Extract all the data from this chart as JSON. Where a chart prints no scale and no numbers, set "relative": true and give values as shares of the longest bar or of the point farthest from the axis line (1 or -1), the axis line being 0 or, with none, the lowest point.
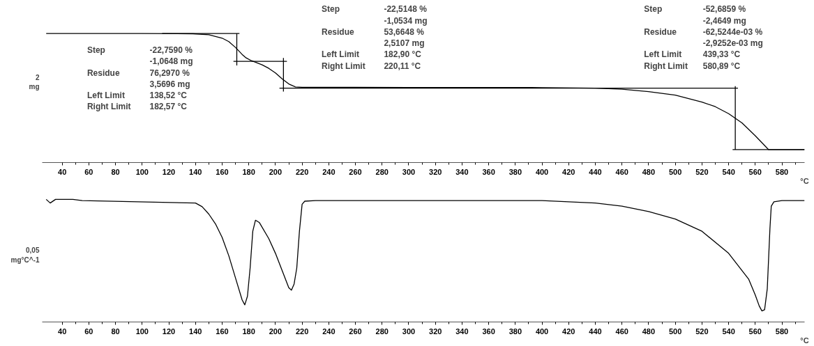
{
  "chart_data": [
    {
      "type": "line",
      "relative": true,
      "ylabel": "2\nmg",
      "xlabel": "°C",
      "xlim": [
        25,
        597
      ],
      "xticks": [
        40,
        {
          "value": 50,
          "label": null
        },
        60,
        {
          "value": 70,
          "label": null
        },
        80,
        {
          "value": 90,
          "label": null
        },
        100,
        {
          "value": 110,
          "label": null
        },
        120,
        {
          "value": 130,
          "label": null
        },
        140,
        {
          "value": 150,
          "label": null
        },
        160,
        {
          "value": 170,
          "label": null
        },
        180,
        {
          "value": 190,
          "label": null
        },
        200,
        {
          "value": 210,
          "label": null
        },
        220,
        {
          "value": 230,
          "label": null
        },
        240,
        {
          "value": 250,
          "label": null
        },
        260,
        {
          "value": 270,
          "label": null
        },
        280,
        {
          "value": 290,
          "label": null
        },
        300,
        {
          "value": 310,
          "label": null
        },
        320,
        {
          "value": 330,
          "label": null
        },
        340,
        {
          "value": 350,
          "label": null
        },
        360,
        {
          "value": 370,
          "label": null
        },
        380,
        {
          "value": 390,
          "label": null
        },
        400,
        {
          "value": 410,
          "label": null
        },
        420,
        {
          "value": 430,
          "label": null
        },
        440,
        {
          "value": 450,
          "label": null
        },
        460,
        {
          "value": 470,
          "label": null
        },
        480,
        {
          "value": 490,
          "label": null
        },
        500,
        {
          "value": 510,
          "label": null
        },
        520,
        {
          "value": 530,
          "label": null
        },
        540,
        {
          "value": 550,
          "label": null
        },
        560,
        {
          "value": 570,
          "label": null
        },
        580,
        {
          "value": 590,
          "label": null
        }
      ],
      "tick_labels": "x",
      "grid": false,
      "marker": "none",
      "line_style": "solid",
      "series": [
        {
          "color": "#000000",
          "x": [
            28,
            100,
            138,
            150,
            160,
            165,
            170,
            175,
            178,
            182,
            190,
            195,
            200,
            205,
            210,
            215,
            220,
            300,
            400,
            440,
            460,
            480,
            500,
            520,
            530,
            540,
            550,
            560,
            565,
            570,
            597
          ],
          "values": [
            1.0,
            1.0,
            0.998,
            0.991,
            0.964,
            0.937,
            0.892,
            0.838,
            0.811,
            0.789,
            0.757,
            0.73,
            0.694,
            0.649,
            0.609,
            0.586,
            0.583,
            0.582,
            0.581,
            0.577,
            0.568,
            0.55,
            0.523,
            0.469,
            0.433,
            0.379,
            0.307,
            0.208,
            0.154,
            0.1,
            0.1
          ]
        },
        {
          "color": "#000000",
          "x": [
            115,
            173
          ],
          "values": [
            1.0,
            1.0
          ]
        },
        {
          "color": "#000000",
          "x": [
            171,
            171
          ],
          "values": [
            1.0,
            0.753
          ]
        },
        {
          "color": "#000000",
          "x": [
            168.5,
            208.6
          ],
          "values": [
            0.784,
            0.784
          ]
        },
        {
          "color": "#000000",
          "x": [
            206,
            206
          ],
          "values": [
            0.811,
            0.55
          ]
        },
        {
          "color": "#000000",
          "x": [
            203,
            547
          ],
          "values": [
            0.577,
            0.577
          ]
        },
        {
          "color": "#000000",
          "x": [
            545,
            545
          ],
          "values": [
            0.592,
            0.1
          ]
        },
        {
          "color": "#000000",
          "x": [
            543,
            597
          ],
          "values": [
            0.1,
            0.1
          ]
        }
      ],
      "annotations": [
        "Step",
        "-22,7590 %",
        "-1,0648 mg",
        "Residue",
        "76,2970 %",
        "3,5696 mg",
        "Left Limit",
        "138,52 °C",
        "Right Limit",
        "182,57 °C",
        "Step",
        "-22,5148 %",
        "-1,0534 mg",
        "Residue",
        "53,6648 %",
        "2,5107 mg",
        "Left Limit",
        "182,90 °C",
        "Right Limit",
        "220,11 °C",
        "Step",
        "-52,6859 %",
        "-2,4649 mg",
        "Residue",
        "-62,5244e-03 %",
        "-2,9252e-03 mg",
        "Left Limit",
        "439,33 °C",
        "Right Limit",
        "580,89 °C"
      ]
    },
    {
      "type": "line",
      "relative": true,
      "ylabel": "0,05\nmg°C^-1",
      "xlabel": "°C",
      "xlim": [
        25,
        597
      ],
      "xticks": [
        40,
        {
          "value": 50,
          "label": null
        },
        60,
        {
          "value": 70,
          "label": null
        },
        80,
        {
          "value": 90,
          "label": null
        },
        100,
        {
          "value": 110,
          "label": null
        },
        120,
        {
          "value": 130,
          "label": null
        },
        140,
        {
          "value": 150,
          "label": null
        },
        160,
        {
          "value": 170,
          "label": null
        },
        180,
        {
          "value": 190,
          "label": null
        },
        200,
        {
          "value": 210,
          "label": null
        },
        220,
        {
          "value": 230,
          "label": null
        },
        240,
        {
          "value": 250,
          "label": null
        },
        260,
        {
          "value": 270,
          "label": null
        },
        280,
        {
          "value": 290,
          "label": null
        },
        300,
        {
          "value": 310,
          "label": null
        },
        320,
        {
          "value": 330,
          "label": null
        },
        340,
        {
          "value": 350,
          "label": null
        },
        360,
        {
          "value": 370,
          "label": null
        },
        380,
        {
          "value": 390,
          "label": null
        },
        400,
        {
          "value": 410,
          "label": null
        },
        420,
        {
          "value": 430,
          "label": null
        },
        440,
        {
          "value": 450,
          "label": null
        },
        460,
        {
          "value": 470,
          "label": null
        },
        480,
        {
          "value": 490,
          "label": null
        },
        500,
        {
          "value": 510,
          "label": null
        },
        520,
        {
          "value": 530,
          "label": null
        },
        540,
        {
          "value": 550,
          "label": null
        },
        560,
        {
          "value": 570,
          "label": null
        },
        580,
        {
          "value": 590,
          "label": null
        }
      ],
      "tick_labels": "x",
      "grid": false,
      "marker": "none",
      "line_style": "solid",
      "series": [
        {
          "color": "#000000",
          "x": [
            28,
            31,
            35,
            48,
            55,
            140,
            145,
            150,
            155,
            160,
            165,
            170,
            175,
            177,
            179,
            181,
            183,
            185,
            188,
            195,
            200,
            205,
            210,
            212,
            214,
            216,
            218,
            220,
            222,
            230,
            300,
            400,
            440,
            460,
            480,
            500,
            520,
            540,
            555,
            560,
            563,
            565,
            567,
            569,
            571,
            572,
            574,
            580,
            597
          ],
          "values": [
            1.0,
            0.97,
            1.0,
            1.0,
            0.99,
            0.97,
            0.94,
            0.88,
            0.8,
            0.69,
            0.54,
            0.36,
            0.18,
            0.14,
            0.21,
            0.44,
            0.74,
            0.83,
            0.81,
            0.68,
            0.56,
            0.42,
            0.28,
            0.26,
            0.31,
            0.44,
            0.74,
            0.96,
            0.985,
            0.99,
            0.99,
            0.99,
            0.97,
            0.945,
            0.9,
            0.84,
            0.74,
            0.56,
            0.35,
            0.22,
            0.13,
            0.09,
            0.1,
            0.27,
            0.76,
            0.945,
            0.98,
            0.99,
            0.99
          ]
        }
      ]
    }
  ]
}
